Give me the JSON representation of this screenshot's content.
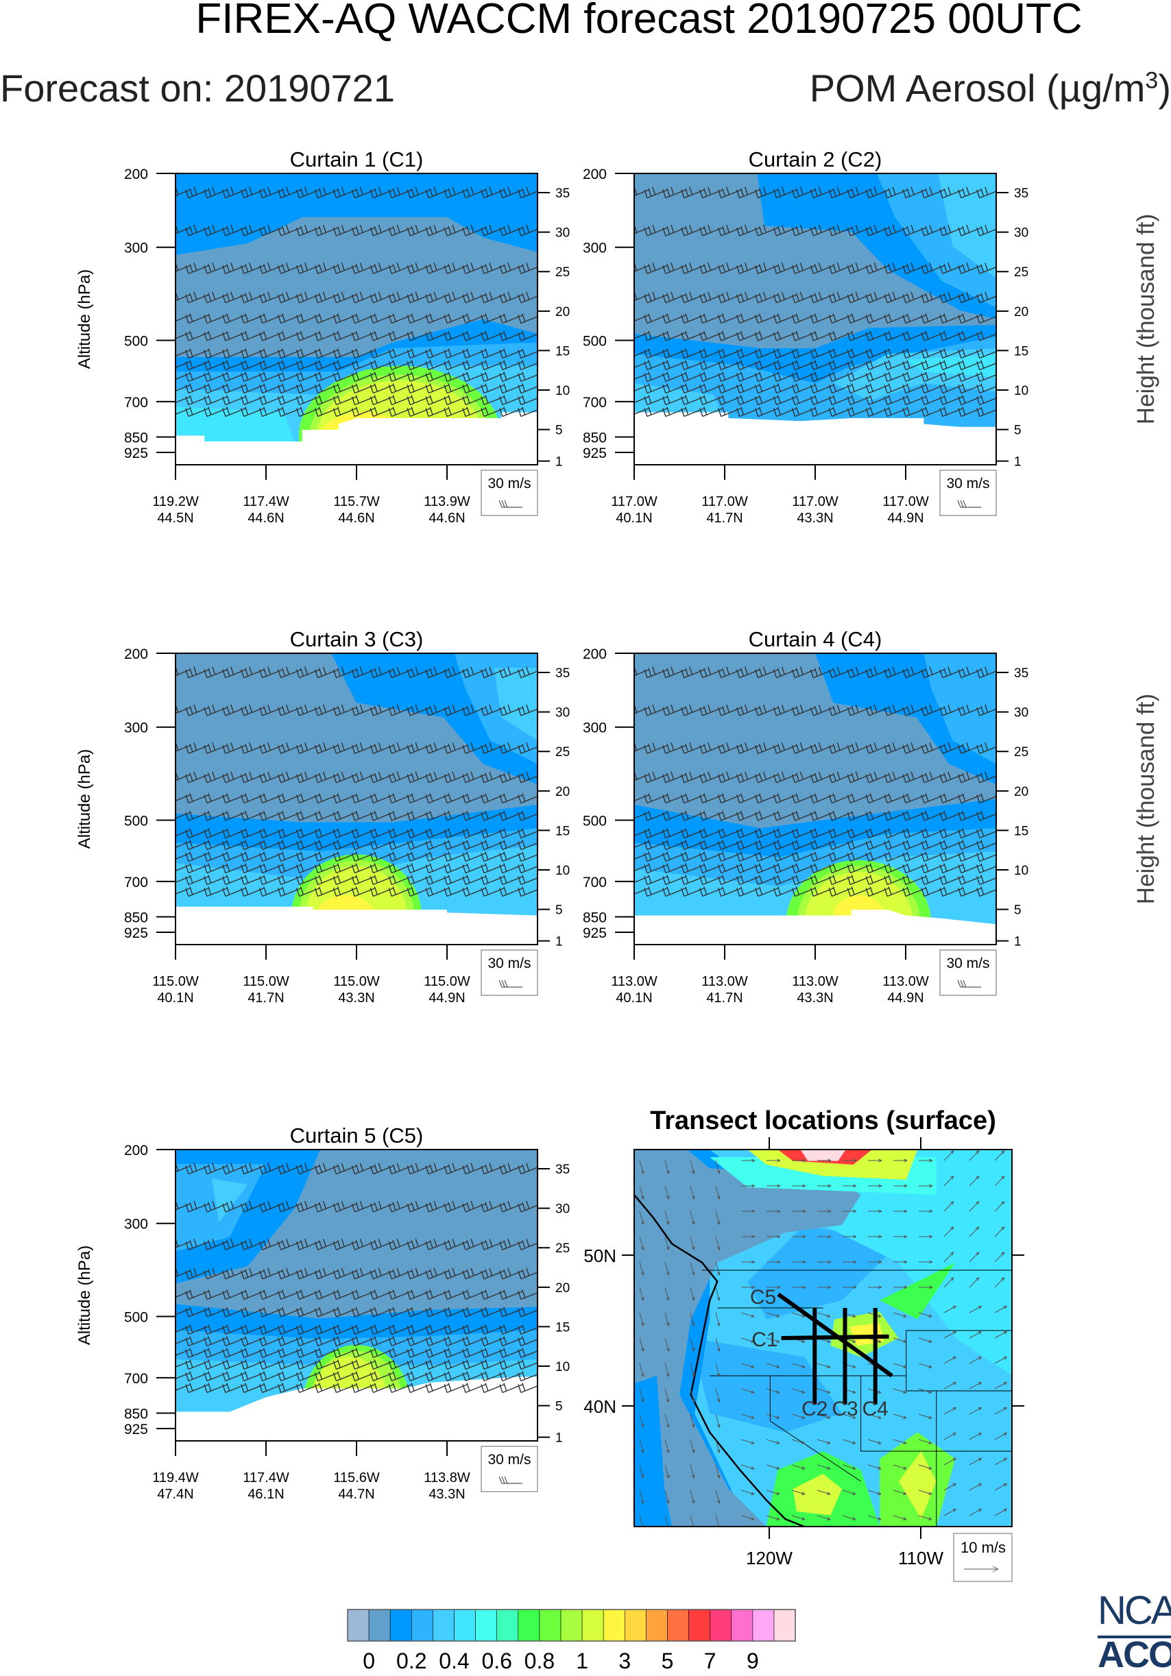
{
  "header": {
    "title": "FIREX-AQ WACCM forecast 20190725 00UTC",
    "forecast_on": "Forecast on: 20190721",
    "variable": "POM Aerosol (µg/m",
    "variable_sup": "3",
    "variable_close": ")"
  },
  "axes_common": {
    "left_label": "Altitude (hPa)",
    "right_label": "Height (thousand ft)",
    "pressure_ticks": [
      200,
      300,
      500,
      700,
      850,
      925
    ],
    "height_ticks": [
      35,
      30,
      25,
      20,
      15,
      10,
      5,
      1
    ],
    "wind_legend": "30 m/s"
  },
  "chart_data": [
    {
      "type": "heatmap",
      "title": "Curtain 1 (C1)",
      "ylabel": "Altitude (hPa)",
      "yscale": "log",
      "ylim": [
        200,
        990
      ],
      "x_ticks": [
        [
          "119.2W",
          "44.5N"
        ],
        [
          "117.4W",
          "44.6N"
        ],
        [
          "115.7W",
          "44.6N"
        ],
        [
          "113.9W",
          "44.6N"
        ]
      ],
      "wind_legend": "30 m/s"
    },
    {
      "type": "heatmap",
      "title": "Curtain 2 (C2)",
      "yscale": "log",
      "ylim": [
        200,
        990
      ],
      "right_label": "Height (thousand ft)",
      "x_ticks": [
        [
          "117.0W",
          "40.1N"
        ],
        [
          "117.0W",
          "41.7N"
        ],
        [
          "117.0W",
          "43.3N"
        ],
        [
          "117.0W",
          "44.9N"
        ]
      ],
      "wind_legend": "30 m/s"
    },
    {
      "type": "heatmap",
      "title": "Curtain 3 (C3)",
      "ylabel": "Altitude (hPa)",
      "yscale": "log",
      "ylim": [
        200,
        990
      ],
      "x_ticks": [
        [
          "115.0W",
          "40.1N"
        ],
        [
          "115.0W",
          "41.7N"
        ],
        [
          "115.0W",
          "43.3N"
        ],
        [
          "115.0W",
          "44.9N"
        ]
      ],
      "wind_legend": "30 m/s"
    },
    {
      "type": "heatmap",
      "title": "Curtain 4 (C4)",
      "yscale": "log",
      "ylim": [
        200,
        990
      ],
      "right_label": "Height (thousand ft)",
      "x_ticks": [
        [
          "113.0W",
          "40.1N"
        ],
        [
          "113.0W",
          "41.7N"
        ],
        [
          "113.0W",
          "43.3N"
        ],
        [
          "113.0W",
          "44.9N"
        ]
      ],
      "wind_legend": "30 m/s"
    },
    {
      "type": "heatmap",
      "title": "Curtain 5 (C5)",
      "ylabel": "Altitude (hPa)",
      "yscale": "log",
      "ylim": [
        200,
        990
      ],
      "x_ticks": [
        [
          "119.4W",
          "47.4N"
        ],
        [
          "117.4W",
          "46.1N"
        ],
        [
          "115.6W",
          "44.7N"
        ],
        [
          "113.8W",
          "43.3N"
        ]
      ],
      "wind_legend": "30 m/s"
    },
    {
      "type": "map",
      "title": "Transect locations (surface)",
      "lon_ticks": [
        "120W",
        "110W"
      ],
      "lat_ticks": [
        "50N",
        "40N"
      ],
      "wind_legend": "10 m/s",
      "transects": [
        {
          "label": "C1",
          "from": [
            -119.2,
            44.5
          ],
          "to": [
            -112.1,
            44.6
          ]
        },
        {
          "label": "C2",
          "from": [
            -117.0,
            40.1
          ],
          "to": [
            -117.0,
            46.5
          ]
        },
        {
          "label": "C3",
          "from": [
            -115.0,
            40.1
          ],
          "to": [
            -115.0,
            46.5
          ]
        },
        {
          "label": "C4",
          "from": [
            -113.0,
            40.1
          ],
          "to": [
            -113.0,
            46.5
          ]
        },
        {
          "label": "C5",
          "from": [
            -119.4,
            47.4
          ],
          "to": [
            -111.9,
            42.0
          ]
        }
      ]
    }
  ],
  "colorbar": {
    "colors": [
      "#9cbad8",
      "#62a0cc",
      "#0099ff",
      "#2eb4ff",
      "#43ceff",
      "#40e6ff",
      "#44fff0",
      "#3dffbc",
      "#3cff4e",
      "#6cff3c",
      "#a7ff40",
      "#d7ff3e",
      "#fff640",
      "#ffd840",
      "#ffa43c",
      "#ff7040",
      "#ff3d3d",
      "#ff3d7a",
      "#ff70cc",
      "#ffa8f6",
      "#ffdbe3"
    ],
    "labels": [
      "0",
      "0.2",
      "0.4",
      "0.6",
      "0.8",
      "1",
      "3",
      "5",
      "7",
      "9"
    ]
  },
  "logo": {
    "top": "NCAR",
    "bottom": "ACOM"
  }
}
